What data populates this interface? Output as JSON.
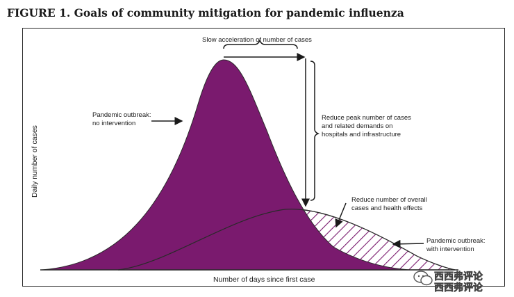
{
  "figure": {
    "title": "FIGURE 1. Goals of community mitigation for pandemic influenza"
  },
  "labels": {
    "slow_acceleration": "Slow acceleration of number of cases",
    "no_intervention_line1": "Pandemic outbreak:",
    "no_intervention_line2": "no intervention",
    "reduce_peak_line1": "Reduce peak number of cases",
    "reduce_peak_line2": "and related demands on",
    "reduce_peak_line3": "hospitals and infrastructure",
    "reduce_overall_line1": "Reduce number of overall",
    "reduce_overall_line2": "cases and health effects",
    "with_intervention_line1": "Pandemic outbreak:",
    "with_intervention_line2": "with intervention",
    "x_axis": "Number of days since first case",
    "y_axis": "Daily number of cases"
  },
  "colors": {
    "no_intervention_fill": "#7a1a6e",
    "with_intervention_hatch": "#7a1a6e",
    "annotation": "#1a1a1a"
  },
  "watermark": {
    "line1": "西西弗评论",
    "line2": "西西弗评论"
  }
}
